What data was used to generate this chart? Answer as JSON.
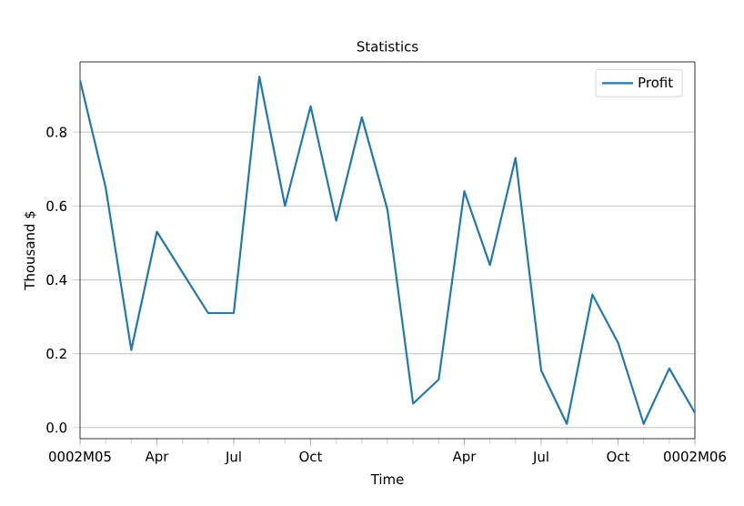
{
  "chart_data": {
    "type": "line",
    "title": "Statistics",
    "xlabel": "Time",
    "ylabel": "Thousand $",
    "categories": [
      "0002M05",
      null,
      null,
      "Apr",
      null,
      null,
      "Jul",
      null,
      null,
      "Oct",
      null,
      null,
      null,
      null,
      null,
      "Apr",
      null,
      null,
      "Jul",
      null,
      null,
      "Oct",
      null,
      null,
      "0002M06"
    ],
    "series": [
      {
        "name": "Profit",
        "color": "#1f77b4",
        "values": [
          0.94,
          0.65,
          0.21,
          0.53,
          0.42,
          0.31,
          0.31,
          0.95,
          0.6,
          0.87,
          0.56,
          0.84,
          0.59,
          0.065,
          0.13,
          0.64,
          0.44,
          0.73,
          0.155,
          0.01,
          0.36,
          0.23,
          0.01,
          0.16,
          0.04
        ]
      }
    ],
    "ylim": [
      -0.03,
      0.99
    ],
    "yticks": [
      {
        "value": 0,
        "label": "0.0"
      },
      {
        "value": 0.2,
        "label": "0.2"
      },
      {
        "value": 0.4,
        "label": "0.4"
      },
      {
        "value": 0.6,
        "label": "0.6"
      },
      {
        "value": 0.8,
        "label": "0.8"
      }
    ],
    "grid": "y",
    "legend": "top right",
    "marker": "none",
    "line_style": "solid"
  }
}
